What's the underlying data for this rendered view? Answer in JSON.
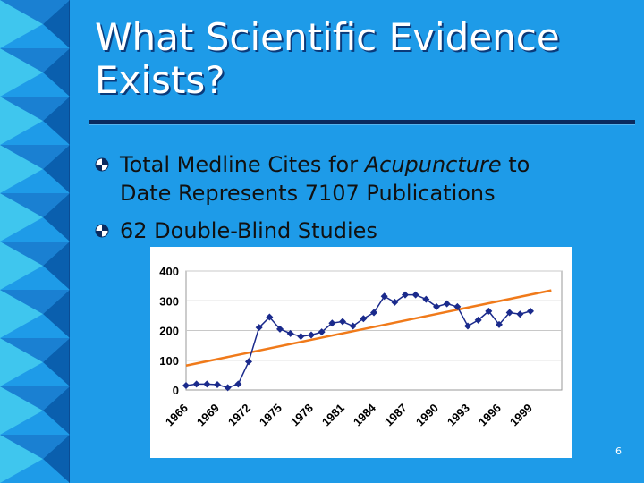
{
  "slide": {
    "title_line1": "What Scientific Evidence",
    "title_line2": "Exists?",
    "bullets": [
      {
        "line1_before": "Total Medline Cites for ",
        "line1_italic": "Acupuncture",
        "line1_after": " to",
        "line2": "Date Represents 7107 Publications"
      },
      {
        "line1": "62 Double-Blind Studies"
      }
    ],
    "slide_number": "6",
    "bullet_icon": "checker-ball-icon"
  },
  "chart_data": {
    "type": "line",
    "x": [
      1966,
      1967,
      1968,
      1969,
      1970,
      1971,
      1972,
      1973,
      1974,
      1975,
      1976,
      1977,
      1978,
      1979,
      1980,
      1981,
      1982,
      1983,
      1984,
      1985,
      1986,
      1987,
      1988,
      1989,
      1990,
      1991,
      1992,
      1993,
      1994,
      1995,
      1996,
      1997,
      1998,
      1999,
      2000,
      2001,
      2002
    ],
    "x_tick_labels": [
      "1966",
      "1969",
      "1972",
      "1975",
      "1978",
      "1981",
      "1984",
      "1987",
      "1990",
      "1993",
      "1996",
      "1999"
    ],
    "ylim": [
      0,
      400
    ],
    "y_ticks": [
      0,
      100,
      200,
      300,
      400
    ],
    "series": [
      {
        "kind": "data",
        "marker": "diamond",
        "color": "#1a2a8c",
        "values": [
          15,
          20,
          20,
          18,
          8,
          20,
          95,
          210,
          245,
          205,
          190,
          180,
          185,
          195,
          225,
          230,
          215,
          240,
          260,
          315,
          295,
          320,
          320,
          305,
          280,
          290,
          280,
          215,
          235,
          265,
          220,
          260,
          255,
          265,
          null,
          null,
          null
        ]
      },
      {
        "kind": "trend",
        "color": "#f07a1a",
        "start": [
          1966,
          82
        ],
        "end": [
          2001,
          335
        ]
      }
    ],
    "grid": true,
    "legend": "none"
  }
}
